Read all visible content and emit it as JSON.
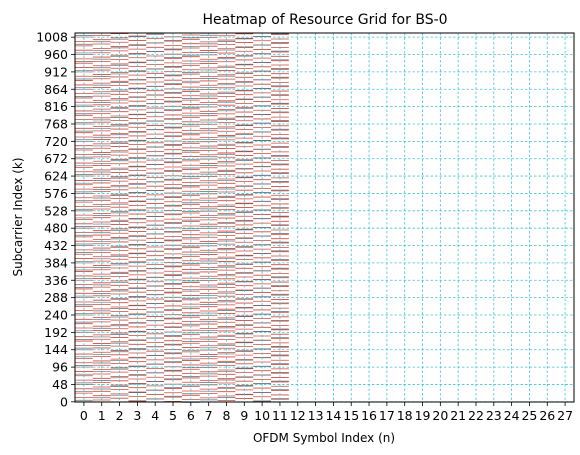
{
  "chart_data": {
    "type": "heatmap",
    "title": "Heatmap of Resource Grid for BS-0",
    "xlabel": "OFDM Symbol Index (n)",
    "ylabel": "Subcarrier Index (k)",
    "x_ticks": [
      "0",
      "1",
      "2",
      "3",
      "4",
      "5",
      "6",
      "7",
      "8",
      "9",
      "10",
      "11",
      "12",
      "13",
      "14",
      "15",
      "16",
      "17",
      "18",
      "19",
      "20",
      "21",
      "22",
      "23",
      "24",
      "25",
      "26",
      "27"
    ],
    "y_ticks": [
      "0",
      "48",
      "96",
      "144",
      "192",
      "240",
      "288",
      "336",
      "384",
      "432",
      "480",
      "528",
      "576",
      "624",
      "672",
      "720",
      "768",
      "816",
      "864",
      "912",
      "960",
      "1008"
    ],
    "xlim": [
      -0.5,
      27.5
    ],
    "ylim": [
      -0.5,
      1019.5
    ],
    "grid": true,
    "grid_color": "#3fc4d4",
    "occupied_symbols": [
      0,
      11
    ],
    "occupied_subcarriers": [
      0,
      1019
    ],
    "pilot_subcarrier_spacing": 12,
    "pilot_color": "#d04a3a",
    "secondary_color": "#5a6a7a",
    "background_color": "#ffffff"
  }
}
